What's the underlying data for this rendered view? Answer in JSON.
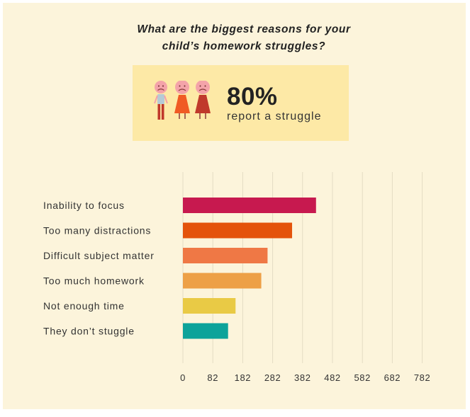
{
  "title_line1": "What are the biggest reasons for your",
  "title_line2": "child’s homework struggles?",
  "stat": {
    "value": "80%",
    "label": "report a struggle"
  },
  "colors": {
    "background": "#fcf4db",
    "stat_box": "#fde9a6",
    "grid": "#e4dcc4"
  },
  "chart_data": {
    "type": "bar",
    "orientation": "horizontal",
    "categories": [
      "Inability to focus",
      "Too many distractions",
      "Difficult subject matter",
      "Too much homework",
      "Not enough time",
      "They don’t stuggle"
    ],
    "values": [
      427,
      347,
      265,
      244,
      158,
      133
    ],
    "colors": [
      "#c7194f",
      "#e4530b",
      "#ef7845",
      "#eda046",
      "#e9ca45",
      "#0da39a"
    ],
    "xticks": [
      0,
      82,
      182,
      282,
      382,
      482,
      582,
      682,
      782
    ],
    "xlim": [
      0,
      782
    ],
    "grid": true,
    "xlabel": "",
    "ylabel": ""
  }
}
